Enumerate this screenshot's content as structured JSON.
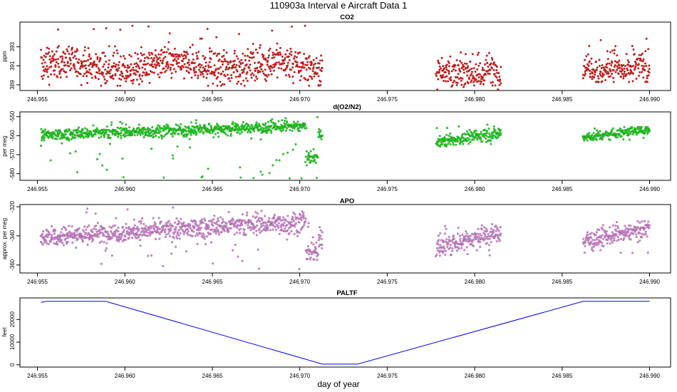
{
  "figure": {
    "title": "110903a   Interval e Aircraft Data 1",
    "xlabel": "day of year"
  },
  "chart_data": [
    {
      "type": "scatter",
      "title": "CO2",
      "ylabel": "ppm",
      "color": "#ff0000",
      "xlim": [
        246.954,
        246.9912
      ],
      "ylim": [
        388.4,
        395.6
      ],
      "xticks": [
        246.955,
        246.96,
        246.965,
        246.97,
        246.975,
        246.98,
        246.985,
        246.99
      ],
      "xtick_labels": [
        "246.955",
        "246.960",
        "246.965",
        "246.970",
        "246.975",
        "246.980",
        "246.985",
        "246.990"
      ],
      "yticks": [
        389,
        391,
        393
      ],
      "ytick_labels": [
        "389",
        "391",
        "393"
      ],
      "segments": [
        {
          "x_start": 246.9552,
          "x_end": 246.9713,
          "center": 391.0,
          "spread": 0.85,
          "low": 388.9,
          "high": 395.3,
          "density": 55
        },
        {
          "x_start": 246.9778,
          "x_end": 246.9815,
          "center": 390.3,
          "spread": 0.8,
          "low": 388.5,
          "high": 392.5,
          "density": 55
        },
        {
          "x_start": 246.9862,
          "x_end": 246.99,
          "center": 390.7,
          "spread": 0.8,
          "low": 389.3,
          "high": 393.9,
          "density": 55
        }
      ]
    },
    {
      "type": "scatter",
      "title": "d(O2/N2)",
      "ylabel": "per meg",
      "color": "#00ee00",
      "xlim": [
        246.954,
        246.9912
      ],
      "ylim": [
        -583.5,
        -547.5
      ],
      "xticks": [
        246.955,
        246.96,
        246.965,
        246.97,
        246.975,
        246.98,
        246.985,
        246.99
      ],
      "xtick_labels": [
        "246.955",
        "246.960",
        "246.965",
        "246.970",
        "246.975",
        "246.980",
        "246.985",
        "246.990"
      ],
      "yticks": [
        -550,
        -560,
        -570,
        -580
      ],
      "ytick_labels": [
        "-550",
        "-560",
        "-570",
        "-580"
      ],
      "segments": [
        {
          "x_start": 246.9552,
          "x_end": 246.9713,
          "center": -557.5,
          "spread": 1.5,
          "low": -583.0,
          "high": -550.0,
          "density": 55
        },
        {
          "x_start": 246.9778,
          "x_end": 246.9815,
          "center": -561.5,
          "spread": 1.5,
          "low": -566.0,
          "high": -554.0,
          "density": 55
        },
        {
          "x_start": 246.9862,
          "x_end": 246.99,
          "center": -559.0,
          "spread": 1.3,
          "low": -562.5,
          "high": -555.5,
          "density": 55
        }
      ]
    },
    {
      "type": "scatter",
      "title": "APO",
      "ylabel": "approx. per meg",
      "color": "#ee82ee",
      "xlim": [
        246.954,
        246.9912
      ],
      "ylim": [
        -365.5,
        -318.5
      ],
      "xticks": [
        246.955,
        246.96,
        246.965,
        246.97,
        246.975,
        246.98,
        246.985,
        246.99
      ],
      "xtick_labels": [
        "246.955",
        "246.960",
        "246.965",
        "246.970",
        "246.975",
        "246.980",
        "246.985",
        "246.990"
      ],
      "yticks": [
        -320,
        -340,
        -360
      ],
      "ytick_labels": [
        "-320",
        "-340",
        "-360"
      ],
      "segments": [
        {
          "x_start": 246.9552,
          "x_end": 246.9713,
          "center": -337.0,
          "spread": 3.5,
          "low": -364.0,
          "high": -320.0,
          "density": 55
        },
        {
          "x_start": 246.9778,
          "x_end": 246.9815,
          "center": -344.5,
          "spread": 3.5,
          "low": -354.0,
          "high": -332.0,
          "density": 55
        },
        {
          "x_start": 246.9862,
          "x_end": 246.99,
          "center": -340.5,
          "spread": 3.0,
          "low": -352.0,
          "high": -330.0,
          "density": 55
        }
      ]
    },
    {
      "type": "line",
      "title": "PALTF",
      "ylabel": "feet",
      "color": "#0000ff",
      "xlim": [
        246.954,
        246.9912
      ],
      "ylim": [
        -1000,
        29500
      ],
      "xticks": [
        246.955,
        246.96,
        246.965,
        246.97,
        246.975,
        246.98,
        246.985,
        246.99
      ],
      "xtick_labels": [
        "246.955",
        "246.960",
        "246.965",
        "246.970",
        "246.975",
        "246.980",
        "246.985",
        "246.990"
      ],
      "yticks": [
        0,
        10000,
        20000
      ],
      "ytick_labels": [
        "0",
        "10000",
        "20000"
      ],
      "x": [
        246.9552,
        246.9555,
        246.9589,
        246.9713,
        246.9733,
        246.9862,
        246.99
      ],
      "y": [
        27500,
        28000,
        28000,
        300,
        300,
        28000,
        28000
      ]
    }
  ]
}
